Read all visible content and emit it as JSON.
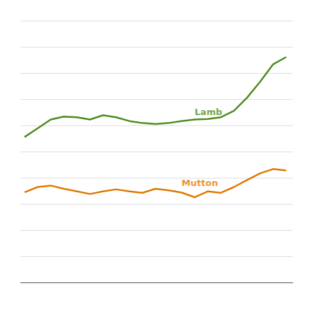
{
  "chart_data": {
    "type": "line",
    "x": [
      0,
      1,
      2,
      3,
      4,
      5,
      6,
      7,
      8,
      9,
      10,
      11,
      12,
      13,
      14,
      15,
      16,
      17,
      18,
      19,
      20
    ],
    "series": [
      {
        "color": "#4a8c1c",
        "values": [
          500,
          530,
          560,
          570,
          568,
          560,
          575,
          568,
          555,
          548,
          545,
          548,
          555,
          560,
          562,
          568,
          590,
          635,
          690,
          750,
          775
        ]
      },
      {
        "color": "#e07800",
        "values": [
          310,
          328,
          333,
          322,
          313,
          304,
          313,
          320,
          313,
          308,
          322,
          317,
          309,
          293,
          313,
          308,
          328,
          352,
          375,
          390,
          385
        ]
      }
    ],
    "annotations": [
      {
        "text": "Lamb",
        "x": 13,
        "y": 565,
        "color": "#4a8c1c"
      },
      {
        "text": "Mutton",
        "x": 12,
        "y": 323,
        "color": "#e07800"
      }
    ],
    "xlim": [
      -0.3,
      20.5
    ],
    "xticks": [],
    "ylim": [
      0,
      900
    ],
    "yticks": [
      0,
      90,
      180,
      270,
      360,
      450,
      540,
      630,
      720,
      810,
      900
    ],
    "grid": true,
    "tick_labels": false
  }
}
